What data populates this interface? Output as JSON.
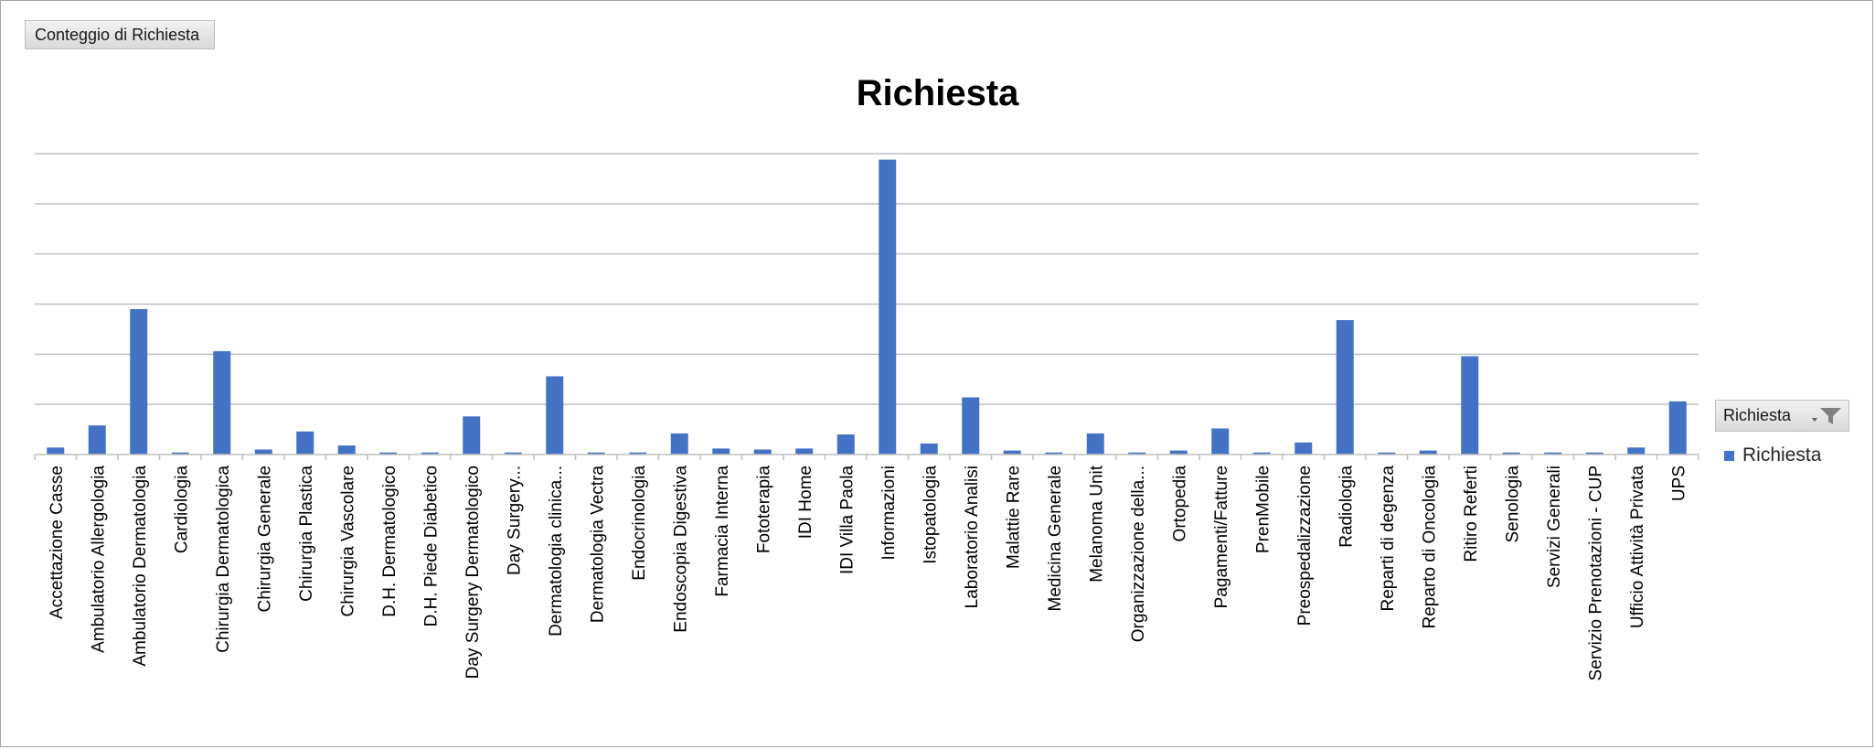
{
  "field_button": {
    "label": "Conteggio di Richiesta"
  },
  "legend": {
    "filter_label": "Richiesta",
    "filter_icon": "funnel-filter-icon",
    "entry_label": "Richiesta",
    "entry_color": "#4472c4"
  },
  "colors": {
    "bar": "#4472c4",
    "gridline": "#bfbfbf",
    "axis": "#bfbfbf",
    "text": "#000000"
  },
  "chart_data": {
    "type": "bar",
    "title": "Richiesta",
    "xlabel": "",
    "ylabel": "",
    "ylim": [
      0,
      300
    ],
    "grid": true,
    "legend_position": "right",
    "categories": [
      "Accettazione Casse",
      "Ambulatorio Allergologia",
      "Ambulatorio Dermatologia",
      "Cardiologia",
      "Chirurgia Dermatologica",
      "Chirurgia Generale",
      "Chirurgia Plastica",
      "Chirurgia Vascolare",
      "D.H. Dermatologico",
      "D.H. Piede Diabetico",
      "Day Surgery Dermatologico",
      "Day Surgery...",
      "Dermatologia clinica...",
      "Dermatologia Vectra",
      "Endocrinologia",
      "Endoscopia Digestiva",
      "Farmacia Interna",
      "Fototerapia",
      "IDI Home",
      "IDI Villa Paola",
      "Informazioni",
      "Istopatologia",
      "Laboratorio Analisi",
      "Malattie Rare",
      "Medicina Generale",
      "Melanoma Unit",
      "Organizzazione della...",
      "Ortopedia",
      "Pagamenti/Fatture",
      "PrenMobile",
      "Preospedalizzazione",
      "Radiologia",
      "Reparti di degenza",
      "Reparto di Oncologia",
      "Ritiro Referti",
      "Senologia",
      "Servizi Generali",
      "Servizio Prenotazioni - CUP",
      "Ufficio Attività Privata",
      "UPS"
    ],
    "series": [
      {
        "name": "Richiesta",
        "values": [
          7,
          29,
          145,
          2,
          103,
          5,
          23,
          9,
          2,
          2,
          38,
          2,
          78,
          2,
          2,
          21,
          6,
          5,
          6,
          20,
          294,
          11,
          57,
          4,
          2,
          21,
          2,
          4,
          26,
          2,
          12,
          134,
          2,
          4,
          98,
          2,
          2,
          2,
          7,
          53
        ]
      }
    ]
  }
}
